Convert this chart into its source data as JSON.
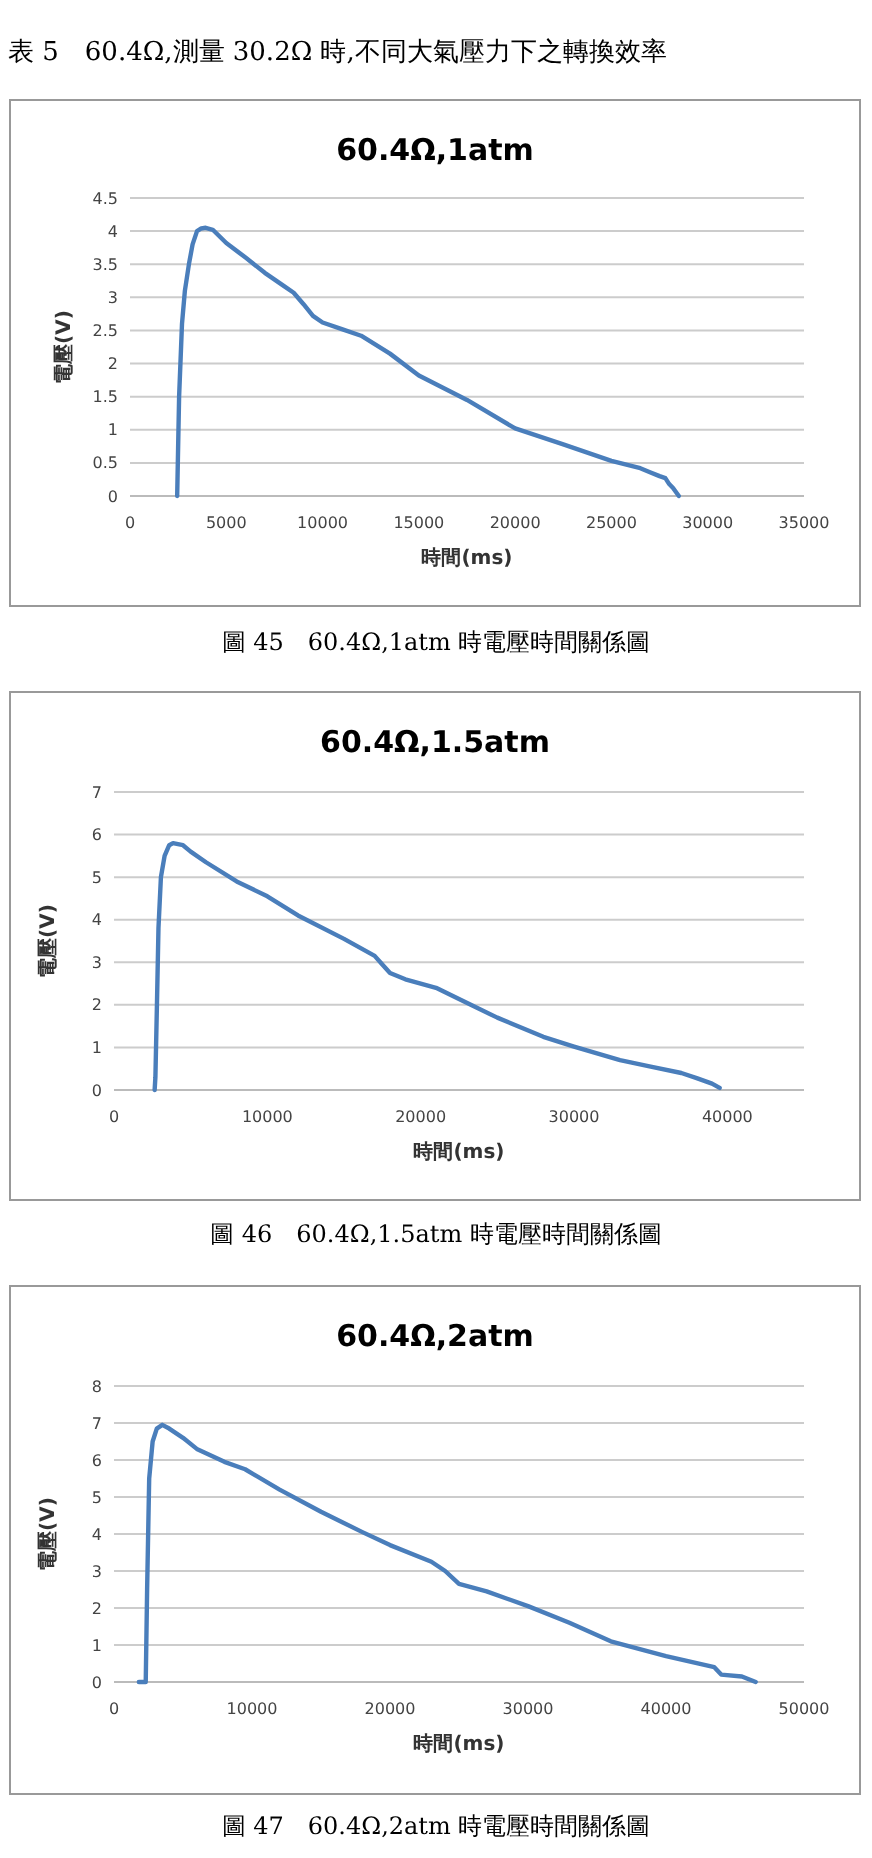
{
  "chart_data": [
    {
      "type": "line",
      "title": "60.4Ω,1atm",
      "xlabel": "時間(ms)",
      "ylabel": "電壓(V)",
      "annotations": [
        "表 5　60.4Ω,測量 30.2Ω 時,不同大氣壓力下之轉換效率",
        "圖 45　60.4Ω,1atm 時電壓時間關係圖"
      ],
      "grid": "y",
      "xlim": [
        0,
        35000
      ],
      "xticks": [
        0,
        5000,
        10000,
        15000,
        20000,
        25000,
        30000,
        35000
      ],
      "ylim": [
        0,
        4.5
      ],
      "yticks": [
        0,
        0.5,
        1,
        1.5,
        2,
        2.5,
        3,
        3.5,
        4,
        4.5
      ],
      "series": [
        {
          "color": "#4a7ebb",
          "x": [
            2450,
            2470,
            2550,
            2700,
            2850,
            3060,
            3250,
            3480,
            3700,
            3930,
            4300,
            5000,
            6000,
            7000,
            8000,
            8500,
            9000,
            9500,
            10000,
            11000,
            12000,
            13500,
            15000,
            17500,
            20000,
            22500,
            25000,
            26500,
            27000,
            27500,
            27800,
            28000,
            28200,
            28500
          ],
          "values": [
            0,
            0.3,
            1.5,
            2.6,
            3.1,
            3.5,
            3.8,
            4.0,
            4.04,
            4.05,
            4.02,
            3.82,
            3.6,
            3.37,
            3.17,
            3.07,
            2.9,
            2.72,
            2.62,
            2.52,
            2.42,
            2.15,
            1.82,
            1.45,
            1.02,
            0.78,
            0.53,
            0.42,
            0.36,
            0.3,
            0.27,
            0.18,
            0.12,
            0.0
          ]
        }
      ]
    },
    {
      "type": "line",
      "title": "60.4Ω,1.5atm",
      "xlabel": "時間(ms)",
      "ylabel": "電壓(V)",
      "annotations": [
        "圖 46　60.4Ω,1.5atm 時電壓時間關係圖"
      ],
      "grid": "y",
      "xlim": [
        0,
        45000
      ],
      "xticks": [
        0,
        10000,
        20000,
        30000,
        40000
      ],
      "ylim": [
        0,
        7
      ],
      "yticks": [
        0,
        1,
        2,
        3,
        4,
        5,
        6,
        7
      ],
      "series": [
        {
          "color": "#4a7ebb",
          "x": [
            2650,
            2700,
            2800,
            2900,
            3060,
            3300,
            3600,
            3850,
            4500,
            5000,
            6000,
            8000,
            10000,
            12000,
            15000,
            17000,
            17500,
            18000,
            19000,
            21000,
            23000,
            25000,
            28000,
            30000,
            33000,
            35000,
            37000,
            38000,
            39000,
            39500
          ],
          "values": [
            0,
            0.3,
            2.0,
            3.8,
            5.0,
            5.5,
            5.75,
            5.8,
            5.75,
            5.6,
            5.35,
            4.9,
            4.55,
            4.1,
            3.55,
            3.15,
            2.95,
            2.75,
            2.6,
            2.4,
            2.05,
            1.7,
            1.25,
            1.02,
            0.7,
            0.55,
            0.4,
            0.28,
            0.15,
            0.05
          ]
        }
      ]
    },
    {
      "type": "line",
      "title": "60.4Ω,2atm",
      "xlabel": "時間(ms)",
      "ylabel": "電壓(V)",
      "annotations": [
        "圖 47　60.4Ω,2atm 時電壓時間關係圖"
      ],
      "grid": "y",
      "xlim": [
        0,
        50000
      ],
      "xticks": [
        0,
        10000,
        20000,
        30000,
        40000,
        50000
      ],
      "ylim": [
        0,
        8
      ],
      "yticks": [
        0,
        1,
        2,
        3,
        4,
        5,
        6,
        7,
        8
      ],
      "series": [
        {
          "color": "#4a7ebb",
          "x": [
            1800,
            2300,
            2400,
            2550,
            2800,
            3100,
            3500,
            4000,
            5000,
            6000,
            8000,
            9500,
            12000,
            15000,
            18000,
            20000,
            23000,
            24000,
            25000,
            27000,
            30000,
            33000,
            36000,
            40000,
            43500,
            44000,
            45500,
            46500
          ],
          "values": [
            0,
            0,
            2.5,
            5.5,
            6.5,
            6.85,
            6.95,
            6.85,
            6.6,
            6.3,
            5.95,
            5.75,
            5.2,
            4.6,
            4.05,
            3.7,
            3.25,
            3.0,
            2.65,
            2.45,
            2.05,
            1.6,
            1.1,
            0.7,
            0.4,
            0.2,
            0.15,
            0.0
          ]
        }
      ]
    }
  ]
}
